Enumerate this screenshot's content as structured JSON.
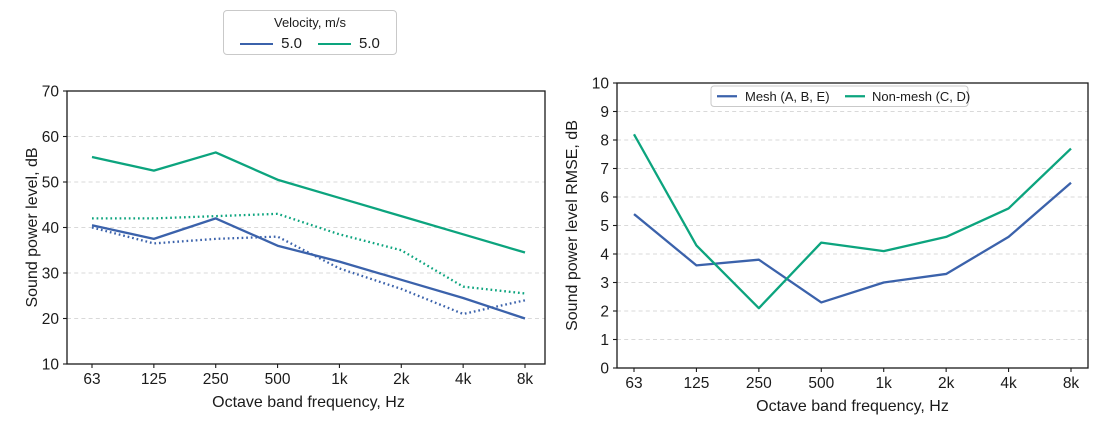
{
  "figure_legend": {
    "title": "Velocity, m/s",
    "entries": [
      {
        "label": "5.0",
        "color": "#3B62AB",
        "line_style": "solid"
      },
      {
        "label": "5.0",
        "color": "#0CA47E",
        "line_style": "solid"
      }
    ]
  },
  "colors": {
    "blue": "#3B62AB",
    "green": "#0CA47E",
    "grid": "#D9D9D9",
    "spine": "#1A1A1A",
    "legend_border": "#C9C9C9",
    "text": "#1B1B1B"
  },
  "chart_data": [
    {
      "type": "line",
      "title": "",
      "categories": [
        "63",
        "125",
        "250",
        "500",
        "1k",
        "2k",
        "4k",
        "8k"
      ],
      "xlabel": "Octave band frequency, Hz",
      "ylabel": "Sound power level, dB",
      "ylim": [
        10,
        70
      ],
      "ytick_step": 10,
      "grid": "horizontal-dashed",
      "legend_position": "figure-top-outside",
      "series": [
        {
          "name": "velocity-5.0-green-solid",
          "legend_label": "5.0",
          "color": "#0CA47E",
          "dash": "solid",
          "values": [
            55.5,
            52.5,
            56.5,
            50.5,
            46.5,
            42.5,
            38.5,
            34.5
          ]
        },
        {
          "name": "velocity-5.0-green-dotted",
          "legend_label": null,
          "color": "#0CA47E",
          "dash": "dotted",
          "values": [
            42,
            42,
            42.5,
            43,
            38.5,
            35,
            27,
            25.5
          ]
        },
        {
          "name": "velocity-5.0-blue-solid",
          "legend_label": "5.0",
          "color": "#3B62AB",
          "dash": "solid",
          "values": [
            40.5,
            37.5,
            42,
            36,
            32.5,
            28.5,
            24.5,
            20
          ]
        },
        {
          "name": "velocity-5.0-blue-dotted",
          "legend_label": null,
          "color": "#3B62AB",
          "dash": "dotted",
          "values": [
            40,
            36.5,
            37.5,
            38,
            31,
            26.5,
            21,
            24
          ]
        }
      ]
    },
    {
      "type": "line",
      "title": "",
      "categories": [
        "63",
        "125",
        "250",
        "500",
        "1k",
        "2k",
        "4k",
        "8k"
      ],
      "xlabel": "Octave band frequency, Hz",
      "ylabel": "Sound power level RMSE, dB",
      "ylim": [
        0,
        10
      ],
      "ytick_step": 1,
      "grid": "horizontal-dashed",
      "legend_position": "top-center-inside",
      "series": [
        {
          "name": "Mesh (A, B, E)",
          "legend_label": "Mesh (A, B, E)",
          "color": "#3B62AB",
          "dash": "solid",
          "values": [
            5.4,
            3.6,
            3.8,
            2.3,
            3.0,
            3.3,
            4.6,
            6.5
          ]
        },
        {
          "name": "Non-mesh (C, D)",
          "legend_label": "Non-mesh (C, D)",
          "color": "#0CA47E",
          "dash": "solid",
          "values": [
            8.2,
            4.3,
            2.1,
            4.4,
            4.1,
            4.6,
            5.6,
            7.7
          ]
        }
      ]
    }
  ]
}
